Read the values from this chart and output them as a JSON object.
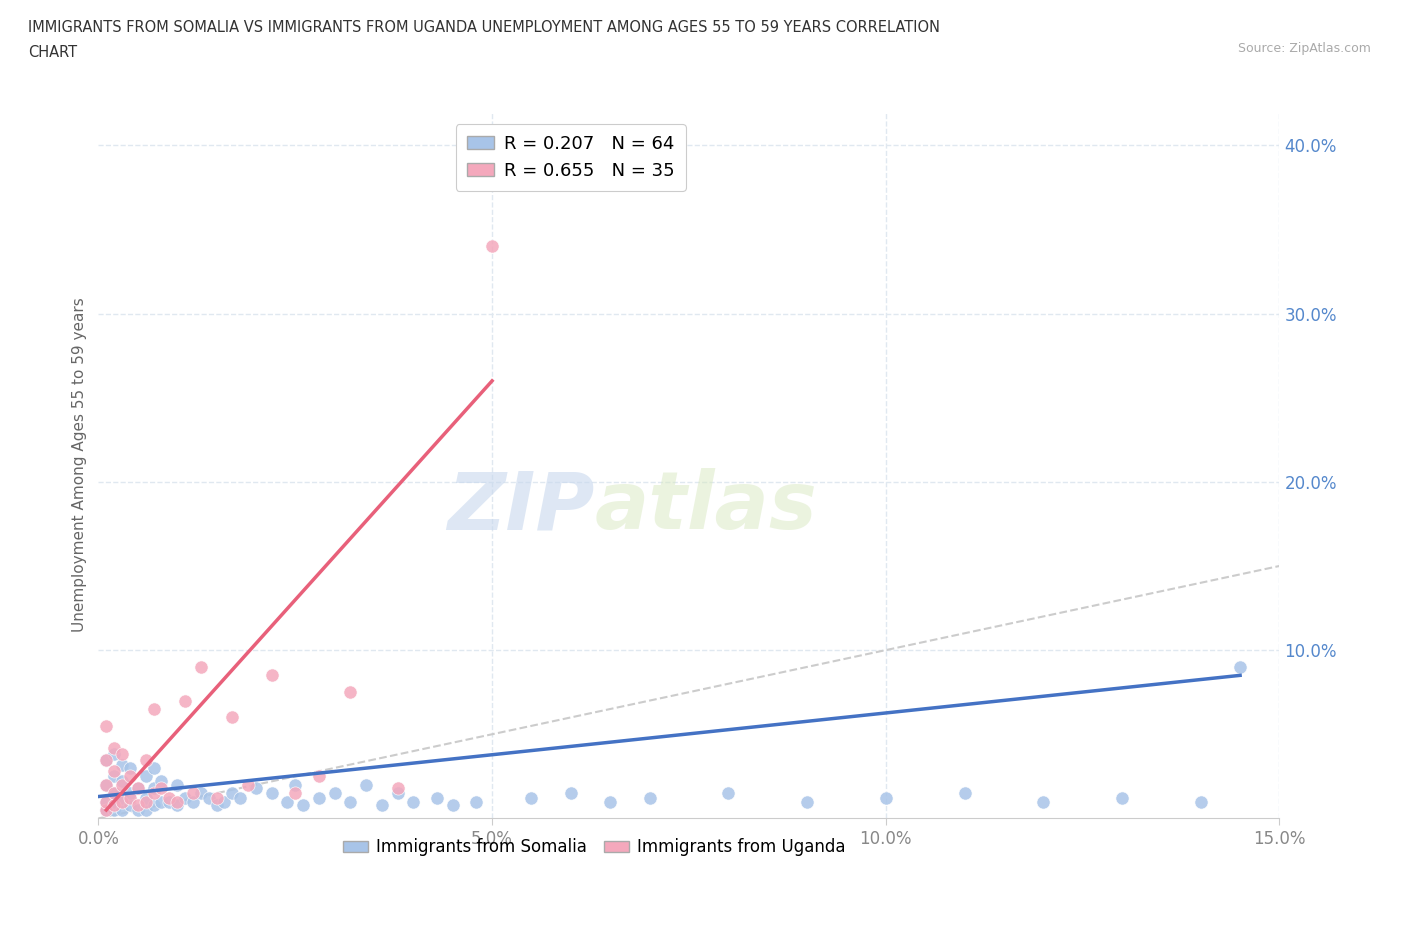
{
  "title_line1": "IMMIGRANTS FROM SOMALIA VS IMMIGRANTS FROM UGANDA UNEMPLOYMENT AMONG AGES 55 TO 59 YEARS CORRELATION",
  "title_line2": "CHART",
  "source": "Source: ZipAtlas.com",
  "xlabel_bottom": "Immigrants from Somalia",
  "xlabel_bottom2": "Immigrants from Uganda",
  "ylabel": "Unemployment Among Ages 55 to 59 years",
  "xlim": [
    0.0,
    0.15
  ],
  "ylim": [
    0.0,
    0.42
  ],
  "yticks_right": [
    0.1,
    0.2,
    0.3,
    0.4
  ],
  "ytick_labels_right": [
    "10.0%",
    "20.0%",
    "30.0%",
    "40.0%"
  ],
  "xtick_labels": [
    "0.0%",
    "5.0%",
    "10.0%",
    "15.0%"
  ],
  "somalia_color": "#a8c4e8",
  "uganda_color": "#f4a8bc",
  "somalia_trend_color": "#4472c4",
  "uganda_trend_color": "#e8607a",
  "reference_line_color": "#cccccc",
  "legend_somalia": "R = 0.207   N = 64",
  "legend_uganda": "R = 0.655   N = 35",
  "watermark_zip": "ZIP",
  "watermark_atlas": "atlas",
  "background_color": "#ffffff",
  "grid_color": "#e0e8f0",
  "somalia_x": [
    0.001,
    0.001,
    0.001,
    0.001,
    0.002,
    0.002,
    0.002,
    0.002,
    0.002,
    0.003,
    0.003,
    0.003,
    0.003,
    0.004,
    0.004,
    0.004,
    0.005,
    0.005,
    0.006,
    0.006,
    0.006,
    0.007,
    0.007,
    0.007,
    0.008,
    0.008,
    0.009,
    0.01,
    0.01,
    0.011,
    0.012,
    0.013,
    0.014,
    0.015,
    0.016,
    0.017,
    0.018,
    0.02,
    0.022,
    0.024,
    0.025,
    0.026,
    0.028,
    0.03,
    0.032,
    0.034,
    0.036,
    0.038,
    0.04,
    0.043,
    0.045,
    0.048,
    0.055,
    0.06,
    0.065,
    0.07,
    0.08,
    0.09,
    0.1,
    0.11,
    0.12,
    0.13,
    0.14,
    0.145
  ],
  "somalia_y": [
    0.005,
    0.01,
    0.02,
    0.035,
    0.005,
    0.01,
    0.015,
    0.025,
    0.038,
    0.005,
    0.012,
    0.022,
    0.032,
    0.008,
    0.015,
    0.03,
    0.005,
    0.018,
    0.005,
    0.012,
    0.025,
    0.008,
    0.018,
    0.03,
    0.01,
    0.022,
    0.01,
    0.008,
    0.02,
    0.012,
    0.01,
    0.015,
    0.012,
    0.008,
    0.01,
    0.015,
    0.012,
    0.018,
    0.015,
    0.01,
    0.02,
    0.008,
    0.012,
    0.015,
    0.01,
    0.02,
    0.008,
    0.015,
    0.01,
    0.012,
    0.008,
    0.01,
    0.012,
    0.015,
    0.01,
    0.012,
    0.015,
    0.01,
    0.012,
    0.015,
    0.01,
    0.012,
    0.01,
    0.09
  ],
  "uganda_x": [
    0.001,
    0.001,
    0.001,
    0.001,
    0.001,
    0.002,
    0.002,
    0.002,
    0.002,
    0.003,
    0.003,
    0.003,
    0.004,
    0.004,
    0.005,
    0.005,
    0.006,
    0.006,
    0.007,
    0.007,
    0.008,
    0.009,
    0.01,
    0.011,
    0.012,
    0.013,
    0.015,
    0.017,
    0.019,
    0.022,
    0.025,
    0.028,
    0.032,
    0.038,
    0.05
  ],
  "uganda_y": [
    0.005,
    0.01,
    0.02,
    0.035,
    0.055,
    0.008,
    0.015,
    0.028,
    0.042,
    0.01,
    0.02,
    0.038,
    0.012,
    0.025,
    0.008,
    0.018,
    0.01,
    0.035,
    0.015,
    0.065,
    0.018,
    0.012,
    0.01,
    0.07,
    0.015,
    0.09,
    0.012,
    0.06,
    0.02,
    0.085,
    0.015,
    0.025,
    0.075,
    0.018,
    0.34
  ],
  "somalia_trend_x": [
    0.0,
    0.145
  ],
  "somalia_trend_y": [
    0.013,
    0.085
  ],
  "uganda_trend_x": [
    0.001,
    0.05
  ],
  "uganda_trend_y": [
    0.005,
    0.26
  ]
}
